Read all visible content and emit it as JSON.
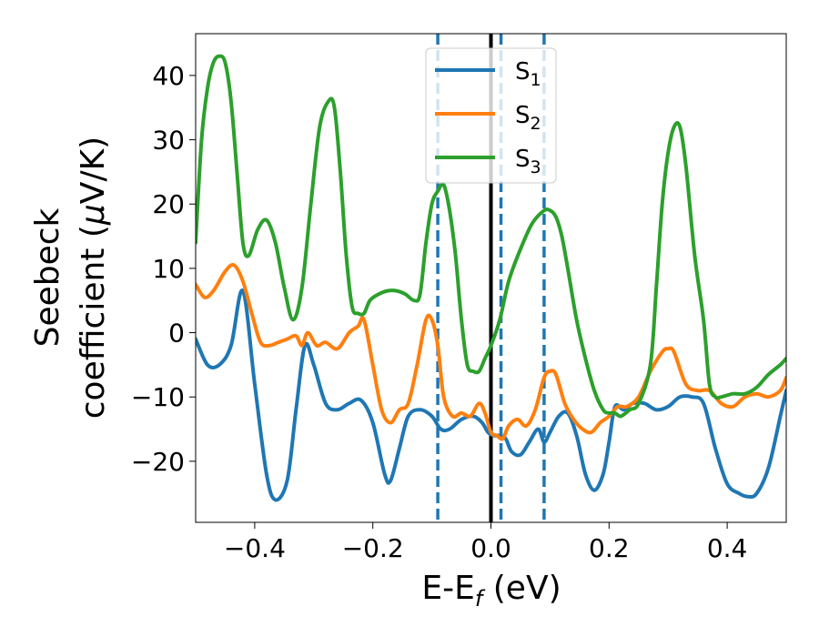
{
  "chart_data": {
    "type": "line",
    "xlabel": {
      "main": "E-E",
      "sub": "f",
      "unit": " (eV)"
    },
    "ylabel": {
      "line1": "Seebeck",
      "line2": "coefficient  (",
      "mu": "μ",
      "unit": "V/K)"
    },
    "xlim": [
      -0.5,
      0.5
    ],
    "ylim": [
      -29.5,
      46.5
    ],
    "xticks": [
      -0.4,
      -0.2,
      0.0,
      0.2,
      0.4
    ],
    "xtick_labels": [
      "−0.4",
      "−0.2",
      "0.0",
      "0.2",
      "0.4"
    ],
    "yticks": [
      -20,
      -10,
      0,
      10,
      20,
      30,
      40
    ],
    "ytick_labels": [
      "−20",
      "−10",
      "0",
      "10",
      "20",
      "30",
      "40"
    ],
    "legend_position": "top-center",
    "grid": false,
    "vertical_lines": [
      {
        "x": 0.0,
        "style": "solid",
        "color": "#000000"
      },
      {
        "x": -0.09,
        "style": "dashed",
        "color": "#1f77b4"
      },
      {
        "x": 0.017,
        "style": "dashed",
        "color": "#1f77b4"
      },
      {
        "x": 0.09,
        "style": "dashed",
        "color": "#1f77b4"
      }
    ],
    "series": [
      {
        "name": "S",
        "sub": "1",
        "color": "#1f77b4",
        "x": [
          -0.5,
          -0.48,
          -0.46,
          -0.44,
          -0.42,
          -0.4,
          -0.38,
          -0.365,
          -0.345,
          -0.33,
          -0.315,
          -0.3,
          -0.28,
          -0.26,
          -0.24,
          -0.22,
          -0.2,
          -0.18,
          -0.17,
          -0.155,
          -0.14,
          -0.12,
          -0.1,
          -0.085,
          -0.07,
          -0.05,
          -0.03,
          -0.015,
          -0.005,
          0.005,
          0.015,
          0.025,
          0.035,
          0.05,
          0.065,
          0.08,
          0.09,
          0.1,
          0.115,
          0.13,
          0.145,
          0.16,
          0.175,
          0.19,
          0.2,
          0.21,
          0.225,
          0.24,
          0.26,
          0.28,
          0.3,
          0.32,
          0.34,
          0.36,
          0.38,
          0.4,
          0.42,
          0.435,
          0.45,
          0.47,
          0.49,
          0.5
        ],
        "y": [
          -1,
          -5,
          -5,
          -2,
          6.5,
          -8,
          -22,
          -26,
          -23,
          -12,
          -2,
          -5,
          -11,
          -12,
          -11,
          -10.5,
          -14,
          -22,
          -23,
          -18,
          -13,
          -12,
          -13,
          -15,
          -15,
          -13.5,
          -13,
          -14,
          -15.5,
          -16,
          -16,
          -16.5,
          -18.5,
          -19,
          -17,
          -15,
          -17,
          -15.5,
          -13,
          -12.5,
          -16,
          -22,
          -24.5,
          -22,
          -17,
          -11.5,
          -12,
          -11,
          -11,
          -12,
          -11.5,
          -10,
          -10,
          -11,
          -18,
          -23.5,
          -25,
          -25.5,
          -25,
          -21,
          -13,
          -9
        ]
      },
      {
        "name": "S",
        "sub": "2",
        "color": "#ff7f0e",
        "x": [
          -0.5,
          -0.485,
          -0.47,
          -0.45,
          -0.435,
          -0.42,
          -0.405,
          -0.39,
          -0.375,
          -0.36,
          -0.345,
          -0.33,
          -0.32,
          -0.31,
          -0.295,
          -0.28,
          -0.26,
          -0.24,
          -0.225,
          -0.215,
          -0.2,
          -0.185,
          -0.17,
          -0.155,
          -0.14,
          -0.125,
          -0.11,
          -0.1,
          -0.09,
          -0.08,
          -0.065,
          -0.05,
          -0.035,
          -0.02,
          -0.01,
          0.0,
          0.01,
          0.02,
          0.03,
          0.045,
          0.06,
          0.075,
          0.09,
          0.1,
          0.11,
          0.125,
          0.14,
          0.155,
          0.17,
          0.185,
          0.2,
          0.215,
          0.23,
          0.25,
          0.27,
          0.29,
          0.3,
          0.31,
          0.33,
          0.35,
          0.37,
          0.39,
          0.41,
          0.43,
          0.45,
          0.47,
          0.49,
          0.5
        ],
        "y": [
          7.5,
          5.5,
          6.5,
          9.5,
          10.5,
          8,
          3,
          -1.5,
          -2,
          -1.5,
          -1,
          -0.5,
          -2,
          0,
          -2,
          -1.5,
          -2.5,
          0,
          1,
          2,
          -5,
          -12,
          -14,
          -12,
          -11,
          -5,
          2,
          2,
          -2,
          -10,
          -13,
          -12.5,
          -13,
          -11,
          -12.5,
          -15.5,
          -16,
          -16.5,
          -14.5,
          -13.5,
          -14.5,
          -12,
          -7,
          -6,
          -6.5,
          -11,
          -13.5,
          -15,
          -15.5,
          -14,
          -13,
          -11.5,
          -11.5,
          -10,
          -6,
          -3,
          -2.5,
          -3,
          -8,
          -9,
          -9,
          -11,
          -11.5,
          -10,
          -9.5,
          -10,
          -9,
          -7
        ]
      },
      {
        "name": "S",
        "sub": "3",
        "color": "#2ca02c",
        "x": [
          -0.5,
          -0.49,
          -0.48,
          -0.47,
          -0.46,
          -0.45,
          -0.44,
          -0.43,
          -0.42,
          -0.41,
          -0.395,
          -0.38,
          -0.365,
          -0.35,
          -0.335,
          -0.32,
          -0.305,
          -0.29,
          -0.275,
          -0.265,
          -0.255,
          -0.245,
          -0.235,
          -0.225,
          -0.215,
          -0.205,
          -0.19,
          -0.175,
          -0.16,
          -0.145,
          -0.13,
          -0.12,
          -0.11,
          -0.1,
          -0.09,
          -0.08,
          -0.07,
          -0.06,
          -0.05,
          -0.04,
          -0.03,
          -0.02,
          -0.01,
          0.0,
          0.015,
          0.03,
          0.05,
          0.07,
          0.09,
          0.1,
          0.11,
          0.12,
          0.13,
          0.145,
          0.16,
          0.175,
          0.19,
          0.2,
          0.21,
          0.22,
          0.235,
          0.25,
          0.27,
          0.28,
          0.29,
          0.3,
          0.31,
          0.32,
          0.33,
          0.345,
          0.36,
          0.37,
          0.38,
          0.39,
          0.41,
          0.43,
          0.45,
          0.47,
          0.49,
          0.5
        ],
        "y": [
          14,
          30,
          38,
          42,
          43,
          42,
          36,
          25,
          14,
          12,
          16,
          17.5,
          14,
          7,
          2,
          7,
          20,
          32,
          36,
          35,
          25,
          12,
          4,
          3,
          3,
          5,
          6,
          6.5,
          6.5,
          6,
          5,
          6,
          14,
          20,
          22,
          23,
          19,
          12,
          2,
          -5,
          -6,
          -6,
          -4,
          -2,
          2,
          8,
          13,
          17,
          19,
          19,
          18,
          15,
          10,
          2,
          -4,
          -9,
          -12,
          -12.5,
          -12.5,
          -13,
          -12,
          -11,
          -5,
          7,
          20,
          28,
          32,
          32,
          26,
          12,
          2,
          -8,
          -10,
          -10,
          -9.5,
          -9.5,
          -8.5,
          -6.5,
          -5,
          -4
        ]
      }
    ]
  }
}
